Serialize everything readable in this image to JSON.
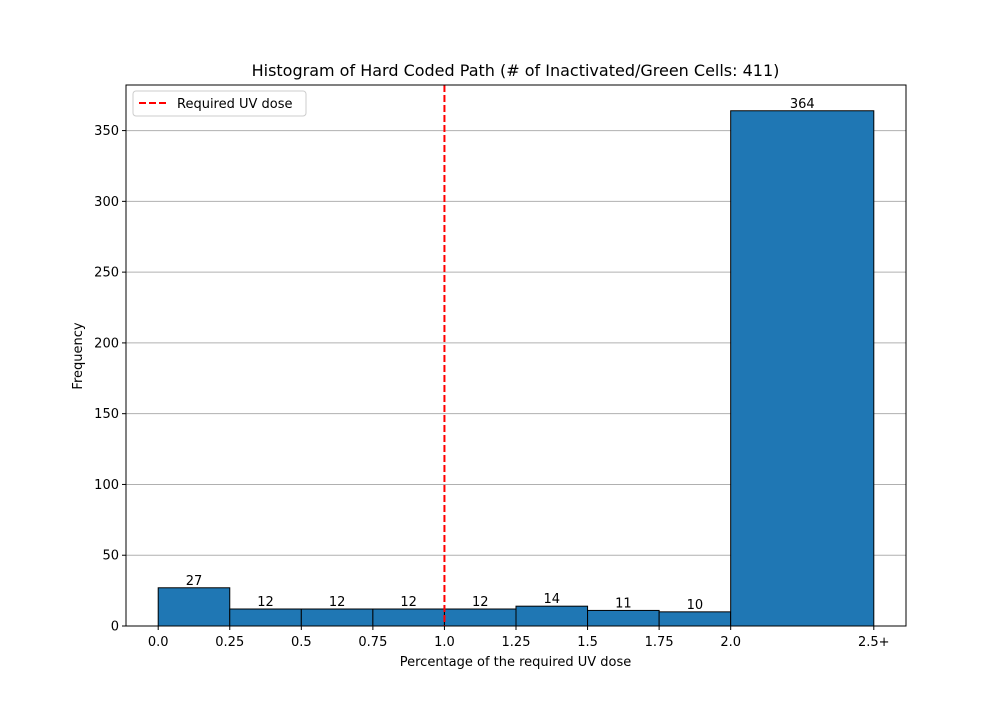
{
  "chart_data": {
    "type": "bar",
    "title": "Histogram of Hard Coded Path (# of Inactivated/Green Cells: 411)",
    "xlabel": "Percentage of the required UV dose",
    "ylabel": "Frequency",
    "bins": [
      {
        "start": 0.0,
        "end": 0.25,
        "count": 27,
        "label": "27"
      },
      {
        "start": 0.25,
        "end": 0.5,
        "count": 12,
        "label": "12"
      },
      {
        "start": 0.5,
        "end": 0.75,
        "count": 12,
        "label": "12"
      },
      {
        "start": 0.75,
        "end": 1.0,
        "count": 12,
        "label": "12"
      },
      {
        "start": 1.0,
        "end": 1.25,
        "count": 12,
        "label": "12"
      },
      {
        "start": 1.25,
        "end": 1.5,
        "count": 14,
        "label": "14"
      },
      {
        "start": 1.5,
        "end": 1.75,
        "count": 11,
        "label": "11"
      },
      {
        "start": 1.75,
        "end": 2.0,
        "count": 10,
        "label": "10"
      },
      {
        "start": 2.0,
        "end": 2.5,
        "count": 364,
        "label": "364"
      }
    ],
    "x_ticks": [
      {
        "value": 0.0,
        "label": "0.0"
      },
      {
        "value": 0.25,
        "label": "0.25"
      },
      {
        "value": 0.5,
        "label": "0.5"
      },
      {
        "value": 0.75,
        "label": "0.75"
      },
      {
        "value": 1.0,
        "label": "1.0"
      },
      {
        "value": 1.25,
        "label": "1.25"
      },
      {
        "value": 1.5,
        "label": "1.5"
      },
      {
        "value": 1.75,
        "label": "1.75"
      },
      {
        "value": 2.0,
        "label": "2.0"
      },
      {
        "value": 2.5,
        "label": "2.5+"
      }
    ],
    "y_ticks": [
      0,
      50,
      100,
      150,
      200,
      250,
      300,
      350
    ],
    "xlim": [
      -0.1125,
      2.6125
    ],
    "ylim": [
      0,
      382.2
    ],
    "reference_line": {
      "x": 1.0,
      "label": "Required UV dose",
      "color": "#ff0000",
      "style": "dashed"
    },
    "legend": {
      "position": "top-left",
      "entries": [
        "Required UV dose"
      ]
    },
    "grid": {
      "y": true,
      "x": false
    },
    "colors": {
      "bar_fill": "#1f77b4",
      "bar_edge": "#000000",
      "grid": "#b0b0b0",
      "reference": "#ff0000"
    }
  }
}
